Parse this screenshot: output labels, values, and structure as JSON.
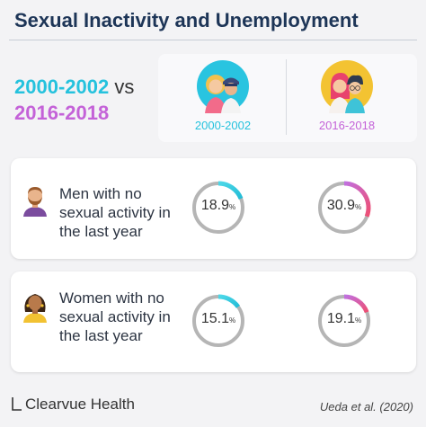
{
  "title": "Sexual Inactivity and Unemployment",
  "comparison": {
    "period_a": "2000-2002",
    "vs": "vs",
    "period_b": "2016-2018",
    "period_a_color": "#25c2dd",
    "period_b_color": "#c462d8"
  },
  "header": {
    "label_a": "2000-2002",
    "label_b": "2016-2018"
  },
  "rows": [
    {
      "label": "Men with no sexual activity in the last year",
      "avatar_icon": "man-avatar-icon",
      "gauges": [
        {
          "value": 18.9,
          "display": "18.9",
          "unit": "%"
        },
        {
          "value": 30.9,
          "display": "30.9",
          "unit": "%"
        }
      ]
    },
    {
      "label": "Women with no sexual activity in the last year",
      "avatar_icon": "woman-avatar-icon",
      "gauges": [
        {
          "value": 15.1,
          "display": "15.1",
          "unit": "%"
        },
        {
          "value": 19.1,
          "display": "19.1",
          "unit": "%"
        }
      ]
    }
  ],
  "footer": {
    "brand": "Clearvue Health",
    "citation": "Ueda et al. (2020)"
  }
}
